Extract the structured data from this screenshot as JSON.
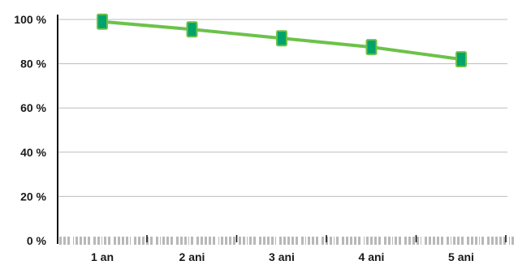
{
  "chart_data": {
    "type": "line",
    "title": "",
    "xlabel": "",
    "ylabel": "",
    "categories": [
      "1 an",
      "2 ani",
      "3 ani",
      "4 ani",
      "5 ani"
    ],
    "series": [
      {
        "values": [
          99,
          95.5,
          91.5,
          87.5,
          82
        ]
      }
    ],
    "ylim": [
      0,
      100
    ],
    "yticks": [
      0,
      20,
      40,
      60,
      80,
      100
    ],
    "ytick_labels": [
      "0 %",
      "20 %",
      "40 %",
      "60 %",
      "80 %",
      "100 %"
    ],
    "grid": true,
    "legend": "none",
    "colors": {
      "line": "#6cc24a",
      "marker_fill": "#00a36c",
      "marker_edge": "#6cc24a",
      "grid": "#bdbdbd",
      "axis": "#111111",
      "baseline_pattern": "#b8b8b8"
    }
  }
}
